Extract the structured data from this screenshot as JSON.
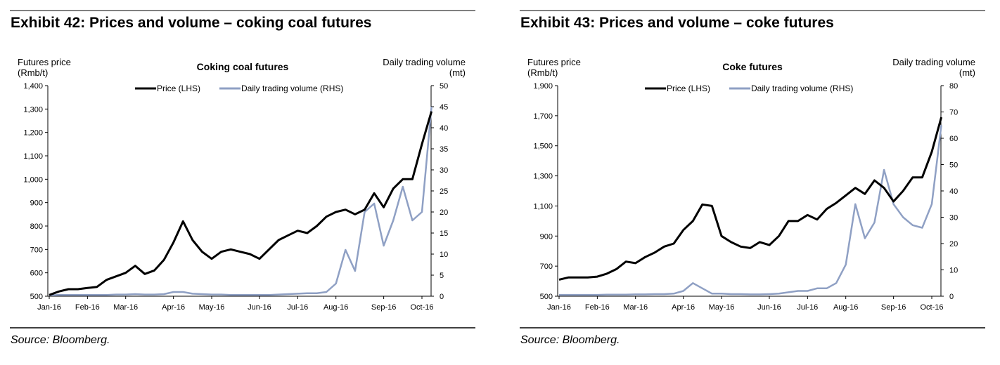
{
  "chart_data": [
    {
      "type": "line",
      "title": "Exhibit 42: Prices and volume – coking coal futures",
      "subtitle": "Coking coal futures",
      "source": "Source: Bloomberg.",
      "ylabel": [
        "Futures price",
        "(Rmb/t)"
      ],
      "y2label": [
        "Daily trading volume",
        "(mt)"
      ],
      "categories": [
        "Jan-16",
        null,
        null,
        null,
        "Feb-16",
        null,
        null,
        null,
        "Mar-16",
        null,
        null,
        null,
        null,
        "Apr-16",
        null,
        null,
        null,
        "May-16",
        null,
        null,
        null,
        null,
        "Jun-16",
        null,
        null,
        null,
        "Jul-16",
        null,
        null,
        null,
        "Aug-16",
        null,
        null,
        null,
        null,
        "Sep-16",
        null,
        null,
        null,
        "Oct-16",
        null
      ],
      "ylim": [
        500,
        1400
      ],
      "yticks": [
        500,
        600,
        700,
        800,
        900,
        {
          "value": 1000,
          "label": "1,000"
        },
        {
          "value": 1100,
          "label": "1,100"
        },
        {
          "value": 1200,
          "label": "1,200"
        },
        {
          "value": 1300,
          "label": "1,300"
        },
        {
          "value": 1400,
          "label": "1,400"
        }
      ],
      "y2lim": [
        0,
        50
      ],
      "y2ticks": [
        0,
        5,
        10,
        15,
        20,
        25,
        30,
        35,
        40,
        45,
        50
      ],
      "series": [
        {
          "name": "Price (LHS)",
          "color": "#000000",
          "values": [
            505,
            520,
            530,
            530,
            535,
            540,
            570,
            585,
            600,
            630,
            595,
            610,
            655,
            730,
            820,
            740,
            690,
            660,
            690,
            700,
            690,
            680,
            660,
            700,
            740,
            760,
            780,
            770,
            800,
            840,
            860,
            870,
            850,
            870,
            940,
            880,
            960,
            1000,
            1000,
            1150,
            1290
          ]
        },
        {
          "name": "Daily trading volume (RHS)",
          "color": "#8fa0c4",
          "axis": "y2",
          "values": [
            0.2,
            0.3,
            0.3,
            0.3,
            0.3,
            0.3,
            0.3,
            0.4,
            0.4,
            0.5,
            0.4,
            0.4,
            0.5,
            1,
            1,
            0.6,
            0.5,
            0.4,
            0.4,
            0.3,
            0.3,
            0.3,
            0.3,
            0.3,
            0.4,
            0.5,
            0.6,
            0.7,
            0.7,
            1,
            3,
            11,
            6,
            20,
            22,
            12,
            18,
            26,
            18,
            20,
            45
          ]
        }
      ]
    },
    {
      "type": "line",
      "title": "Exhibit 43: Prices and volume – coke futures",
      "subtitle": "Coke futures",
      "source": "Source: Bloomberg.",
      "ylabel": [
        "Futures price",
        "(Rmb/t)"
      ],
      "y2label": [
        "Daily trading volume",
        "(mt)"
      ],
      "categories": [
        "Jan-16",
        null,
        null,
        null,
        "Feb-16",
        null,
        null,
        null,
        "Mar-16",
        null,
        null,
        null,
        null,
        "Apr-16",
        null,
        null,
        null,
        "May-16",
        null,
        null,
        null,
        null,
        "Jun-16",
        null,
        null,
        null,
        "Jul-16",
        null,
        null,
        null,
        "Aug-16",
        null,
        null,
        null,
        null,
        "Sep-16",
        null,
        null,
        null,
        "Oct-16",
        null
      ],
      "ylim": [
        500,
        1900
      ],
      "yticks": [
        500,
        700,
        900,
        {
          "value": 1100,
          "label": "1,100"
        },
        {
          "value": 1300,
          "label": "1,300"
        },
        {
          "value": 1500,
          "label": "1,500"
        },
        {
          "value": 1700,
          "label": "1,700"
        },
        {
          "value": 1900,
          "label": "1,900"
        }
      ],
      "y2lim": [
        0,
        80
      ],
      "y2ticks": [
        0,
        10,
        20,
        30,
        40,
        50,
        60,
        70,
        80
      ],
      "series": [
        {
          "name": "Price (LHS)",
          "color": "#000000",
          "values": [
            610,
            625,
            625,
            625,
            630,
            650,
            680,
            730,
            720,
            760,
            790,
            830,
            850,
            940,
            1000,
            1110,
            1100,
            900,
            860,
            830,
            820,
            860,
            840,
            900,
            1000,
            1000,
            1040,
            1010,
            1080,
            1120,
            1170,
            1220,
            1180,
            1270,
            1220,
            1130,
            1200,
            1290,
            1290,
            1460,
            1690
          ]
        },
        {
          "name": "Daily trading volume (RHS)",
          "color": "#8fa0c4",
          "axis": "y2",
          "values": [
            0.5,
            0.5,
            0.5,
            0.5,
            0.5,
            0.6,
            0.6,
            0.6,
            0.7,
            0.7,
            0.8,
            0.8,
            1,
            2,
            5,
            3,
            1,
            1,
            0.8,
            0.8,
            0.7,
            0.7,
            0.8,
            1,
            1.5,
            2,
            2,
            3,
            3,
            5,
            12,
            35,
            22,
            28,
            48,
            35,
            30,
            27,
            26,
            35,
            65
          ]
        }
      ]
    }
  ]
}
